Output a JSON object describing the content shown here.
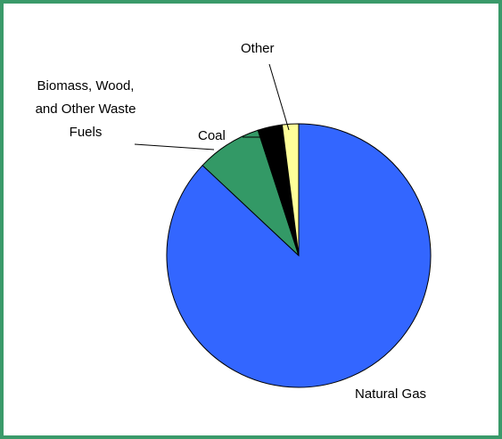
{
  "chart_data": {
    "type": "pie",
    "categories": [
      "Natural Gas",
      "Biomass, Wood, and Other Waste Fuels",
      "Coal",
      "Other"
    ],
    "values": [
      87,
      8,
      3,
      2
    ],
    "colors": [
      "#3366ff",
      "#339966",
      "#000000",
      "#ffff99"
    ]
  }
}
